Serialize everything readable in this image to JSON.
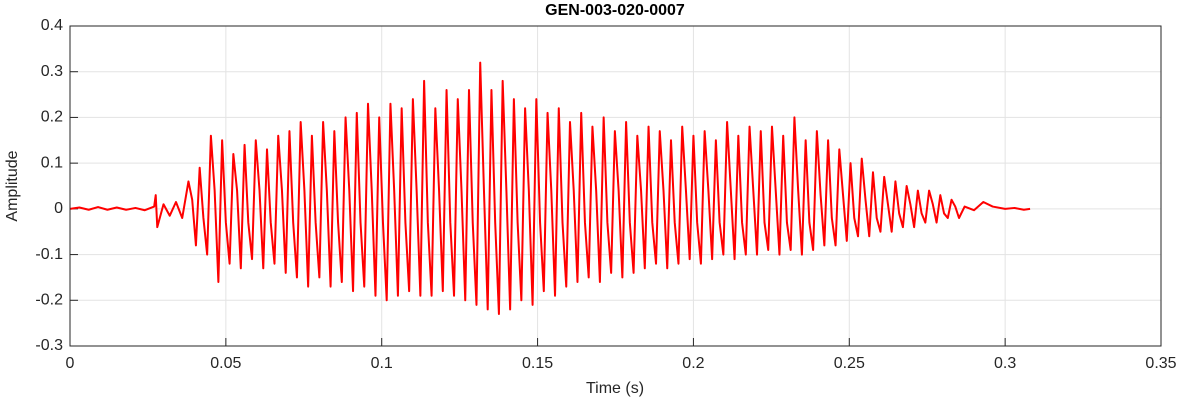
{
  "chart_data": {
    "type": "line",
    "title": "GEN-003-020-0007",
    "x_label": "Time (s)",
    "y_label": "Amplitude",
    "xlim": [
      0,
      0.35
    ],
    "ylim": [
      -0.3,
      0.4
    ],
    "xticks": [
      0,
      0.05,
      0.1,
      0.15,
      0.2,
      0.25,
      0.3,
      0.35
    ],
    "yticks": [
      -0.3,
      -0.2,
      -0.1,
      0,
      0.1,
      0.2,
      0.3,
      0.4
    ],
    "grid": true,
    "x": [
      0,
      0.003,
      0.006,
      0.009,
      0.012,
      0.015,
      0.018,
      0.021,
      0.024,
      0.027,
      0.0275,
      0.028,
      0.03,
      0.032,
      0.034,
      0.036,
      0.038,
      0.0392,
      0.0404,
      0.0416,
      0.0428,
      0.044,
      0.0452,
      0.0464,
      0.0476,
      0.0488,
      0.05,
      0.0512,
      0.0524,
      0.0536,
      0.0548,
      0.056,
      0.0572,
      0.0584,
      0.0596,
      0.0608,
      0.062,
      0.0632,
      0.0644,
      0.0656,
      0.0668,
      0.068,
      0.0692,
      0.0704,
      0.0716,
      0.0728,
      0.074,
      0.0752,
      0.0764,
      0.0776,
      0.0788,
      0.08,
      0.0812,
      0.0824,
      0.0836,
      0.0848,
      0.086,
      0.0872,
      0.0884,
      0.0896,
      0.0908,
      0.092,
      0.0932,
      0.0944,
      0.0956,
      0.0968,
      0.098,
      0.0992,
      0.1004,
      0.1016,
      0.1028,
      0.104,
      0.1052,
      0.1064,
      0.1076,
      0.1088,
      0.11,
      0.1112,
      0.1124,
      0.1136,
      0.1148,
      0.116,
      0.1172,
      0.1184,
      0.1196,
      0.1208,
      0.122,
      0.1232,
      0.1244,
      0.1256,
      0.1268,
      0.128,
      0.1292,
      0.1304,
      0.1316,
      0.1328,
      0.134,
      0.1352,
      0.1364,
      0.1376,
      0.1388,
      0.14,
      0.1412,
      0.1424,
      0.1436,
      0.1448,
      0.146,
      0.1472,
      0.1484,
      0.1496,
      0.1508,
      0.152,
      0.1532,
      0.1544,
      0.1556,
      0.1568,
      0.158,
      0.1592,
      0.1604,
      0.1616,
      0.1628,
      0.164,
      0.1652,
      0.1664,
      0.1676,
      0.1688,
      0.17,
      0.1712,
      0.1724,
      0.1736,
      0.1748,
      0.176,
      0.1772,
      0.1784,
      0.1796,
      0.1808,
      0.182,
      0.1832,
      0.1844,
      0.1856,
      0.1868,
      0.188,
      0.1892,
      0.1904,
      0.1916,
      0.1928,
      0.194,
      0.1952,
      0.1964,
      0.1976,
      0.1988,
      0.2,
      0.2012,
      0.2024,
      0.2036,
      0.2048,
      0.206,
      0.2072,
      0.2084,
      0.2096,
      0.2108,
      0.212,
      0.2132,
      0.2144,
      0.2156,
      0.2168,
      0.218,
      0.2192,
      0.2204,
      0.2216,
      0.2228,
      0.224,
      0.2252,
      0.2264,
      0.2276,
      0.2288,
      0.23,
      0.2312,
      0.2324,
      0.2336,
      0.2348,
      0.236,
      0.2372,
      0.2384,
      0.2396,
      0.2408,
      0.242,
      0.2432,
      0.2444,
      0.2456,
      0.2468,
      0.248,
      0.2492,
      0.2504,
      0.2516,
      0.2528,
      0.254,
      0.2552,
      0.2564,
      0.2576,
      0.2588,
      0.26,
      0.2612,
      0.2624,
      0.2636,
      0.2648,
      0.266,
      0.2672,
      0.2684,
      0.2696,
      0.2708,
      0.272,
      0.2732,
      0.2744,
      0.2756,
      0.2768,
      0.278,
      0.2792,
      0.2804,
      0.2816,
      0.2828,
      0.284,
      0.2852,
      0.287,
      0.29,
      0.293,
      0.296,
      0.3,
      0.303,
      0.306,
      0.308
    ],
    "series": [
      {
        "name": "Amplitude",
        "color": "#ff0000",
        "values": [
          0,
          0.003,
          -0.002,
          0.004,
          -0.002,
          0.003,
          -0.002,
          0.002,
          -0.003,
          0.005,
          0.03,
          -0.04,
          0.01,
          -0.015,
          0.015,
          -0.02,
          0.06,
          0.02,
          -0.08,
          0.09,
          -0.02,
          -0.1,
          0.16,
          0.04,
          -0.16,
          0.15,
          -0.03,
          -0.12,
          0.12,
          0.04,
          -0.13,
          0.14,
          -0.03,
          -0.11,
          0.15,
          0.04,
          -0.13,
          0.13,
          -0.03,
          -0.12,
          0.16,
          0.04,
          -0.14,
          0.17,
          -0.03,
          -0.15,
          0.19,
          0.04,
          -0.17,
          0.16,
          -0.03,
          -0.15,
          0.19,
          0.04,
          -0.17,
          0.17,
          -0.03,
          -0.16,
          0.2,
          0.04,
          -0.18,
          0.21,
          -0.03,
          -0.17,
          0.23,
          0.04,
          -0.19,
          0.2,
          -0.03,
          -0.2,
          0.23,
          0.04,
          -0.19,
          0.22,
          -0.03,
          -0.18,
          0.24,
          0.04,
          -0.19,
          0.28,
          -0.03,
          -0.19,
          0.22,
          0.04,
          -0.18,
          0.26,
          -0.03,
          -0.19,
          0.24,
          0.04,
          -0.2,
          0.26,
          -0.03,
          -0.21,
          0.32,
          0.04,
          -0.22,
          0.26,
          -0.03,
          -0.23,
          0.28,
          0.04,
          -0.22,
          0.24,
          -0.03,
          -0.2,
          0.22,
          0.04,
          -0.21,
          0.24,
          -0.03,
          -0.18,
          0.21,
          0.04,
          -0.19,
          0.22,
          -0.03,
          -0.17,
          0.19,
          0.04,
          -0.16,
          0.21,
          -0.03,
          -0.15,
          0.18,
          0.04,
          -0.16,
          0.2,
          -0.03,
          -0.14,
          0.17,
          0.04,
          -0.15,
          0.19,
          -0.03,
          -0.14,
          0.16,
          0.04,
          -0.13,
          0.18,
          -0.03,
          -0.12,
          0.17,
          0.04,
          -0.13,
          0.15,
          -0.03,
          -0.12,
          0.18,
          0.04,
          -0.11,
          0.16,
          -0.03,
          -0.12,
          0.17,
          0.04,
          -0.11,
          0.15,
          -0.03,
          -0.1,
          0.19,
          0.04,
          -0.11,
          0.16,
          -0.03,
          -0.1,
          0.18,
          0.04,
          -0.1,
          0.17,
          -0.03,
          -0.09,
          0.18,
          0.04,
          -0.1,
          0.16,
          -0.03,
          -0.09,
          0.2,
          0.04,
          -0.1,
          0.15,
          -0.03,
          -0.09,
          0.17,
          0.03,
          -0.08,
          0.15,
          -0.02,
          -0.08,
          0.13,
          0.03,
          -0.07,
          0.1,
          -0.02,
          -0.06,
          0.11,
          0.02,
          -0.06,
          0.08,
          -0.02,
          -0.05,
          0.07,
          0.01,
          -0.05,
          0.06,
          -0.01,
          -0.04,
          0.05,
          0.01,
          -0.04,
          0.04,
          -0.01,
          -0.03,
          0.04,
          0.01,
          -0.03,
          0.03,
          -0.01,
          -0.02,
          0.02,
          0.005,
          -0.02,
          0.005,
          -0.003,
          0.015,
          0.005,
          0,
          0.002,
          -0.002,
          0
        ]
      }
    ]
  }
}
